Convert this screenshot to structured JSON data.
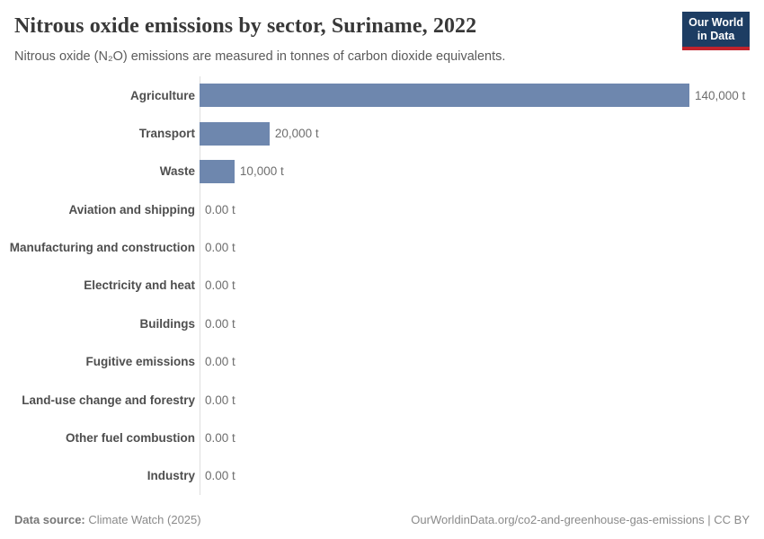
{
  "header": {
    "title": "Nitrous oxide emissions by sector, Suriname, 2022",
    "subtitle": "Nitrous oxide (N₂O) emissions are measured in tonnes of carbon dioxide equivalents.",
    "logo": {
      "line1": "Our World",
      "line2": "in Data",
      "bg_color": "#1d3d63",
      "stripe_color": "#c0232c"
    }
  },
  "chart_data": {
    "type": "bar",
    "orientation": "horizontal",
    "title": "Nitrous oxide emissions by sector, Suriname, 2022",
    "unit": "t (tonnes of CO₂ equivalents)",
    "categories": [
      "Agriculture",
      "Transport",
      "Waste",
      "Aviation and shipping",
      "Manufacturing and construction",
      "Electricity and heat",
      "Buildings",
      "Fugitive emissions",
      "Land-use change and forestry",
      "Other fuel combustion",
      "Industry"
    ],
    "values": [
      140000,
      20000,
      10000,
      0,
      0,
      0,
      0,
      0,
      0,
      0,
      0
    ],
    "value_labels": [
      "140,000 t",
      "20,000 t",
      "10,000 t",
      "0.00 t",
      "0.00 t",
      "0.00 t",
      "0.00 t",
      "0.00 t",
      "0.00 t",
      "0.00 t",
      "0.00 t"
    ],
    "xlim": [
      0,
      140000
    ],
    "bar_color": "#6e87ae",
    "grid": false,
    "legend": "none"
  },
  "footer": {
    "datasource_label": "Data source:",
    "datasource_value": " Climate Watch (2025)",
    "credit": "OurWorldinData.org/co2-and-greenhouse-gas-emissions | CC BY"
  }
}
